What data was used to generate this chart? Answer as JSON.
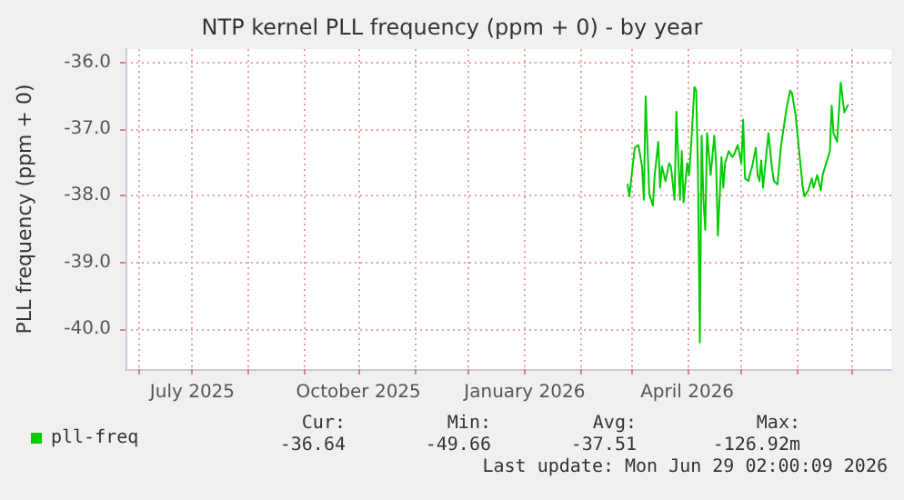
{
  "chart_data": {
    "type": "line",
    "title": "NTP kernel PLL frequency (ppm + 0) - by year",
    "ylabel": "PLL frequency (ppm + 0)",
    "x": [
      "2026-02-27",
      "2026-02-28",
      "2026-03-02",
      "2026-03-03",
      "2026-03-05",
      "2026-03-07",
      "2026-03-08",
      "2026-03-09",
      "2026-03-11",
      "2026-03-13",
      "2026-03-14",
      "2026-03-16",
      "2026-03-17",
      "2026-03-18",
      "2026-03-20",
      "2026-03-22",
      "2026-03-23",
      "2026-03-25",
      "2026-03-26",
      "2026-03-28",
      "2026-03-29",
      "2026-03-30",
      "2026-04-01",
      "2026-04-02",
      "2026-04-03",
      "2026-04-05",
      "2026-04-06",
      "2026-04-07",
      "2026-04-08",
      "2026-04-09",
      "2026-04-10",
      "2026-04-11",
      "2026-04-12",
      "2026-04-14",
      "2026-04-16",
      "2026-04-17",
      "2026-04-18",
      "2026-04-20",
      "2026-04-21",
      "2026-04-22",
      "2026-04-24",
      "2026-04-26",
      "2026-04-27",
      "2026-04-29",
      "2026-05-01",
      "2026-05-02",
      "2026-05-03",
      "2026-05-05",
      "2026-05-06",
      "2026-05-07",
      "2026-05-09",
      "2026-05-10",
      "2026-05-11",
      "2026-05-12",
      "2026-05-13",
      "2026-05-15",
      "2026-05-16",
      "2026-05-18",
      "2026-05-19",
      "2026-05-21",
      "2026-05-23",
      "2026-05-24",
      "2026-05-26",
      "2026-05-28",
      "2026-05-29",
      "2026-05-31",
      "2026-06-02",
      "2026-06-04",
      "2026-06-05",
      "2026-06-07",
      "2026-06-09",
      "2026-06-10",
      "2026-06-12",
      "2026-06-14",
      "2026-06-15",
      "2026-06-17",
      "2026-06-19",
      "2026-06-20",
      "2026-06-21",
      "2026-06-23",
      "2026-06-25",
      "2026-06-27",
      "2026-06-29"
    ],
    "series": [
      {
        "name": "pll-freq",
        "color": "#00cc00",
        "values": [
          -37.83,
          -38.01,
          -37.51,
          -37.28,
          -37.24,
          -37.56,
          -38.06,
          -36.51,
          -37.97,
          -38.15,
          -37.69,
          -37.19,
          -37.88,
          -37.56,
          -37.78,
          -37.51,
          -37.56,
          -38.06,
          -36.74,
          -38.06,
          -37.33,
          -38.1,
          -37.51,
          -37.69,
          -37.33,
          -36.37,
          -36.42,
          -37.69,
          -40.2,
          -37.1,
          -38.06,
          -38.51,
          -37.06,
          -37.69,
          -37.1,
          -37.51,
          -38.6,
          -37.42,
          -37.88,
          -37.51,
          -37.33,
          -37.42,
          -37.38,
          -37.24,
          -37.51,
          -36.86,
          -37.74,
          -37.78,
          -37.65,
          -37.56,
          -37.28,
          -37.69,
          -37.78,
          -37.47,
          -37.88,
          -37.33,
          -37.06,
          -37.6,
          -37.78,
          -37.83,
          -37.24,
          -37.06,
          -36.69,
          -36.42,
          -36.46,
          -36.78,
          -37.33,
          -37.88,
          -38.01,
          -37.92,
          -37.74,
          -37.88,
          -37.69,
          -37.92,
          -37.69,
          -37.51,
          -37.33,
          -36.65,
          -37.06,
          -37.19,
          -36.3,
          -36.75,
          -36.64
        ]
      }
    ],
    "xlim": [
      "2025-05-25",
      "2026-07-23"
    ],
    "xticks": [
      {
        "value": "2025-06-01",
        "label": null
      },
      {
        "value": "2025-07-01",
        "label": "July 2025"
      },
      {
        "value": "2025-08-01",
        "label": null
      },
      {
        "value": "2025-09-01",
        "label": null
      },
      {
        "value": "2025-10-01",
        "label": "October 2025"
      },
      {
        "value": "2025-11-01",
        "label": null
      },
      {
        "value": "2025-12-01",
        "label": null
      },
      {
        "value": "2026-01-01",
        "label": "January 2026"
      },
      {
        "value": "2026-02-01",
        "label": null
      },
      {
        "value": "2026-03-01",
        "label": null
      },
      {
        "value": "2026-04-01",
        "label": "April 2026"
      },
      {
        "value": "2026-05-01",
        "label": null
      },
      {
        "value": "2026-06-01",
        "label": null
      },
      {
        "value": "2026-07-01",
        "label": null
      }
    ],
    "ylim": [
      -40.6,
      -35.8
    ],
    "yticks": [
      {
        "value": -36,
        "label": "-36.0"
      },
      {
        "value": -37,
        "label": "-37.0"
      },
      {
        "value": -38,
        "label": "-38.0"
      },
      {
        "value": -39,
        "label": "-39.0"
      },
      {
        "value": -40,
        "label": "-40.0"
      }
    ],
    "grid": true,
    "legend": "bottom left",
    "marker": "none",
    "line_style": "solid",
    "annotations": [
      "Cur:",
      "Min:",
      "Avg:",
      "Max:",
      "-36.64",
      "-49.66",
      "-37.51",
      "-126.92m",
      "Last update: Mon Jun 29 02:00:09 2026"
    ]
  }
}
